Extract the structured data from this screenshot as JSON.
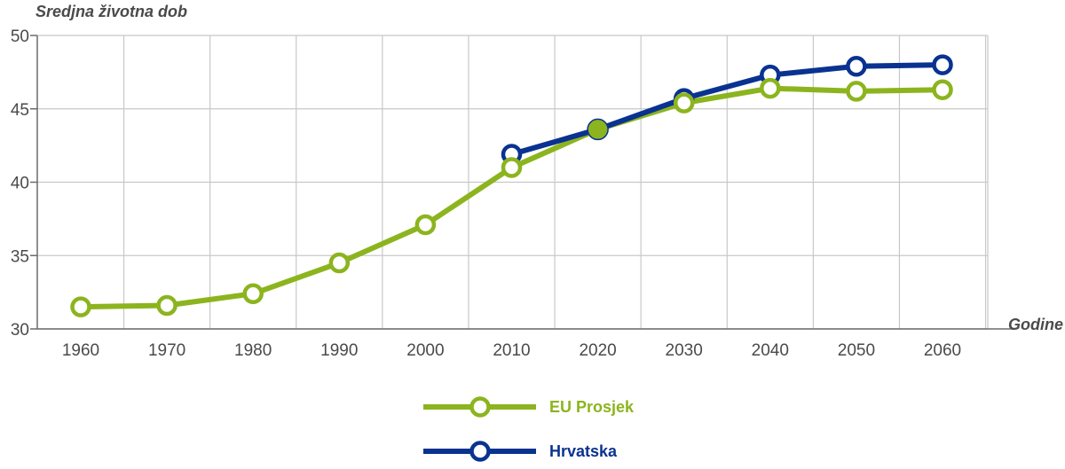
{
  "chart_data": {
    "type": "line",
    "ylabel": "Sredjna životna dob",
    "xlabel": "Godine",
    "x": [
      1960,
      1970,
      1980,
      1990,
      2000,
      2010,
      2020,
      2030,
      2040,
      2050,
      2060
    ],
    "ylim": [
      30,
      50
    ],
    "yticks": [
      30,
      35,
      40,
      45,
      50
    ],
    "grid": true,
    "legend_position": "bottom",
    "series": [
      {
        "name": "EU Prosjek",
        "color": "#8cb41e",
        "values": [
          31.5,
          31.6,
          32.4,
          34.5,
          37.1,
          41.0,
          43.6,
          45.4,
          46.4,
          46.2,
          46.3
        ]
      },
      {
        "name": "Hrvatska",
        "color": "#0a3290",
        "values": [
          null,
          null,
          null,
          null,
          null,
          41.9,
          43.6,
          45.7,
          47.3,
          47.9,
          48.0
        ]
      }
    ]
  }
}
